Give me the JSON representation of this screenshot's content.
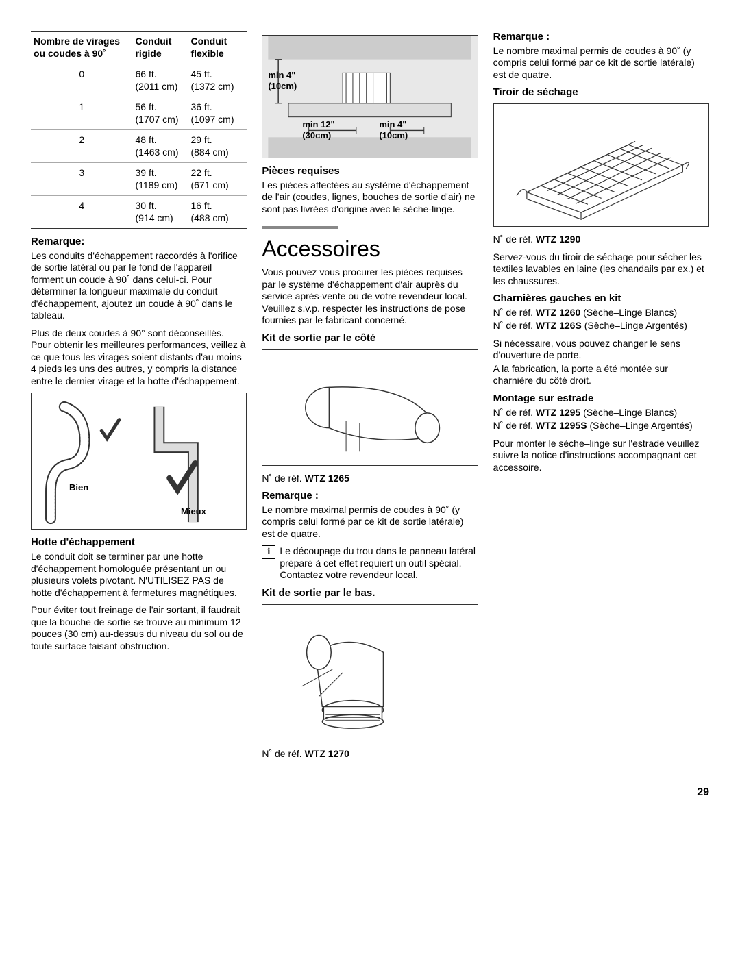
{
  "table": {
    "headers": [
      "Nombre de virages ou coudes à 90˚",
      "Conduit rigide",
      "Conduit flexible"
    ],
    "rows": [
      [
        "0",
        "66 ft. (2011 cm)",
        "45 ft. (1372 cm)"
      ],
      [
        "1",
        "56 ft. (1707 cm)",
        "36 ft. (1097 cm)"
      ],
      [
        "2",
        "48 ft. (1463 cm)",
        "29 ft. (884 cm)"
      ],
      [
        "3",
        "39 ft. (1189 cm)",
        "22 ft. (671 cm)"
      ],
      [
        "4",
        "30 ft. (914 cm)",
        "16 ft. (488 cm)"
      ]
    ]
  },
  "col1": {
    "remarque_label": "Remarque:",
    "remarque_p1": "Les conduits d'échappement raccordés à l'orifice de sortie latéral ou par le fond de l'appareil forment un coude à 90˚ dans celui-ci. Pour déterminer la longueur maximale du conduit d'échappement, ajoutez un coude à 90˚ dans le tableau.",
    "remarque_p2": "Plus de deux coudes à 90° sont déconseillés. Pour obtenir les meilleures performances, veillez à ce que tous les virages soient distants d'au moins 4 pieds les uns des autres, y compris la distance entre le dernier virage et la hotte d'échappement.",
    "fig_bien": "Bien",
    "fig_mieux": "Mieux",
    "hotte_title": "Hotte d'échappement",
    "hotte_p1": "Le conduit doit se terminer par une hotte d'échappement homologuée présentant un ou plusieurs volets pivotant.  N'UTILISEZ PAS de hotte d'échappement à fermetures magnétiques.",
    "hotte_p2": "Pour éviter tout freinage de l'air sortant, il faudrait que la bouche de sortie se trouve au minimum 12 pouces (30 cm) au-dessus du niveau du sol ou de toute surface faisant obstruction."
  },
  "col2": {
    "fig_top_l1": "min 4\"",
    "fig_top_l2": "(10cm)",
    "fig_bot_l1": "min 12\"",
    "fig_bot_l2": "(30cm)",
    "fig_bot_r1": "min 4\"",
    "fig_bot_r2": "(10cm)",
    "pieces_title": "Pièces requises",
    "pieces_p": "Les pièces affectées au système d'échappement de l'air (coudes, lignes, bouches de sortie d'air) ne sont pas livrées d'origine avec le sèche‑linge.",
    "accessoires_title": "Accessoires",
    "accessoires_p": "Vous pouvez vous procurer les pièces requises par le système d'échappement d'air auprès du service après‑vente ou de votre revendeur local. Veuillez s.v.p. respecter les instructions de pose fournies par le fabricant concerné.",
    "kit_cote_title": "Kit de sortie par le côté",
    "ref_1265_pre": "N˚ de réf. ",
    "ref_1265": "WTZ 1265",
    "remarque2_label": "Remarque :",
    "remarque2_p": "Le nombre maximal permis de coudes à 90˚ (y compris celui formé par ce kit de sortie latérale) est de quatre.",
    "info_p": "Le découpage du trou dans le panneau latéral préparé à cet effet requiert un outil spécial. Contactez votre revendeur local.",
    "kit_bas_title": "Kit de sortie par le bas.",
    "ref_1270_pre": "N˚ de réf. ",
    "ref_1270": "WTZ 1270"
  },
  "col3": {
    "remarque3_label": "Remarque :",
    "remarque3_p": "Le nombre maximal permis de coudes à 90˚ (y compris celui formé par ce kit de sortie latérale) est de quatre.",
    "tiroir_title": "Tiroir de séchage",
    "ref_1290_pre": "N˚ de réf. ",
    "ref_1290": "WTZ 1290",
    "tiroir_p": "Servez‑vous du tiroir de séchage pour sécher les textiles lavables en laine (les chandails par ex.) et les chaussures.",
    "charnieres_title": "Charnières gauches en kit",
    "ref_1260_pre": "N˚ de réf. ",
    "ref_1260": "WTZ 1260",
    "ref_1260_suf": " (Sèche–Linge Blancs)",
    "ref_126S_pre": "N˚ de réf. ",
    "ref_126S": "WTZ 126S",
    "ref_126S_suf": " (Sèche–Linge Argentés)",
    "charnieres_p1": "Si nécessaire, vous pouvez changer le sens d'ouverture de porte.",
    "charnieres_p2": "A la fabrication, la porte a été montée sur charnière du côté droit.",
    "montage_title": "Montage sur estrade",
    "ref_1295_pre": "N˚ de réf. ",
    "ref_1295": "WTZ 1295",
    "ref_1295_suf": " (Sèche–Linge Blancs)",
    "ref_1295S_pre": "N˚ de réf. ",
    "ref_1295S": "WTZ 1295S",
    "ref_1295S_suf": " (Sèche–Linge Argentés)",
    "montage_p": "Pour monter le sèche–linge sur l'estrade veuillez suivre la notice d'instructions accompagnant cet accessoire."
  },
  "page_number": "29",
  "colors": {
    "rule": "#888888",
    "border": "#333333"
  }
}
